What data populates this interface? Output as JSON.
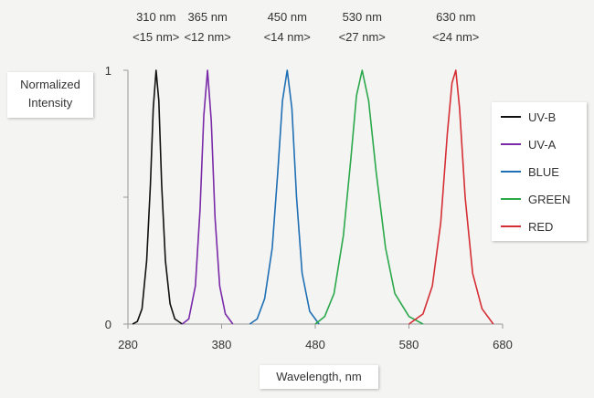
{
  "colors": {
    "background": "#f4f4f3",
    "axis": "#999999"
  },
  "chart_data": {
    "type": "line",
    "xlabel": "Wavelength, nm",
    "ylabel": "Normalized Intensity",
    "xlim": [
      280,
      680
    ],
    "ylim": [
      0,
      1
    ],
    "x_ticks": [
      280,
      380,
      480,
      580,
      680
    ],
    "x_tick_labels": [
      "280",
      "380",
      "480",
      "580",
      "680"
    ],
    "y_ticks": [
      0,
      0.5,
      1
    ],
    "y_tick_labels": [
      "0",
      "",
      "1"
    ],
    "grid": false,
    "legend_position": "right",
    "series": [
      {
        "name": "UV-B",
        "color": "#111111",
        "peak_nm": 310,
        "fwhm_nm": 15,
        "peak_label": "310 nm",
        "fwhm_label": "<15 nm>",
        "points": [
          [
            285,
            0
          ],
          [
            290,
            0.01
          ],
          [
            295,
            0.06
          ],
          [
            300,
            0.25
          ],
          [
            304,
            0.55
          ],
          [
            307,
            0.85
          ],
          [
            310,
            1.0
          ],
          [
            313,
            0.88
          ],
          [
            316,
            0.55
          ],
          [
            320,
            0.25
          ],
          [
            325,
            0.08
          ],
          [
            330,
            0.02
          ],
          [
            338,
            0.0
          ]
        ]
      },
      {
        "name": "UV-A",
        "color": "#7a2aa8",
        "peak_nm": 365,
        "fwhm_nm": 12,
        "peak_label": "365 nm",
        "fwhm_label": "<12 nm>",
        "points": [
          [
            338,
            0
          ],
          [
            345,
            0.02
          ],
          [
            352,
            0.15
          ],
          [
            357,
            0.45
          ],
          [
            361,
            0.82
          ],
          [
            365,
            1.0
          ],
          [
            369,
            0.8
          ],
          [
            373,
            0.42
          ],
          [
            378,
            0.15
          ],
          [
            384,
            0.04
          ],
          [
            392,
            0.0
          ]
        ]
      },
      {
        "name": "BLUE",
        "color": "#1f6fb4",
        "peak_nm": 450,
        "fwhm_nm": 14,
        "peak_label": "450 nm",
        "fwhm_label": "<14 nm>",
        "points": [
          [
            410,
            0
          ],
          [
            418,
            0.02
          ],
          [
            426,
            0.1
          ],
          [
            434,
            0.3
          ],
          [
            440,
            0.6
          ],
          [
            445,
            0.88
          ],
          [
            450,
            1.0
          ],
          [
            455,
            0.85
          ],
          [
            460,
            0.5
          ],
          [
            466,
            0.2
          ],
          [
            474,
            0.05
          ],
          [
            484,
            0.0
          ]
        ]
      },
      {
        "name": "GREEN",
        "color": "#2aa84a",
        "peak_nm": 530,
        "fwhm_nm": 27,
        "peak_label": "530 nm",
        "fwhm_label": "<27 nm>",
        "points": [
          [
            480,
            0
          ],
          [
            490,
            0.03
          ],
          [
            500,
            0.12
          ],
          [
            510,
            0.35
          ],
          [
            518,
            0.65
          ],
          [
            524,
            0.9
          ],
          [
            530,
            1.0
          ],
          [
            537,
            0.88
          ],
          [
            545,
            0.6
          ],
          [
            555,
            0.3
          ],
          [
            565,
            0.12
          ],
          [
            580,
            0.03
          ],
          [
            595,
            0.0
          ]
        ]
      },
      {
        "name": "RED",
        "color": "#d62e35",
        "peak_nm": 630,
        "fwhm_nm": 24,
        "peak_label": "630 nm",
        "fwhm_label": "<24 nm>",
        "points": [
          [
            580,
            0
          ],
          [
            595,
            0.04
          ],
          [
            605,
            0.15
          ],
          [
            614,
            0.4
          ],
          [
            621,
            0.75
          ],
          [
            626,
            0.95
          ],
          [
            630,
            1.0
          ],
          [
            634,
            0.85
          ],
          [
            640,
            0.5
          ],
          [
            648,
            0.2
          ],
          [
            658,
            0.06
          ],
          [
            670,
            0.0
          ]
        ]
      }
    ]
  }
}
